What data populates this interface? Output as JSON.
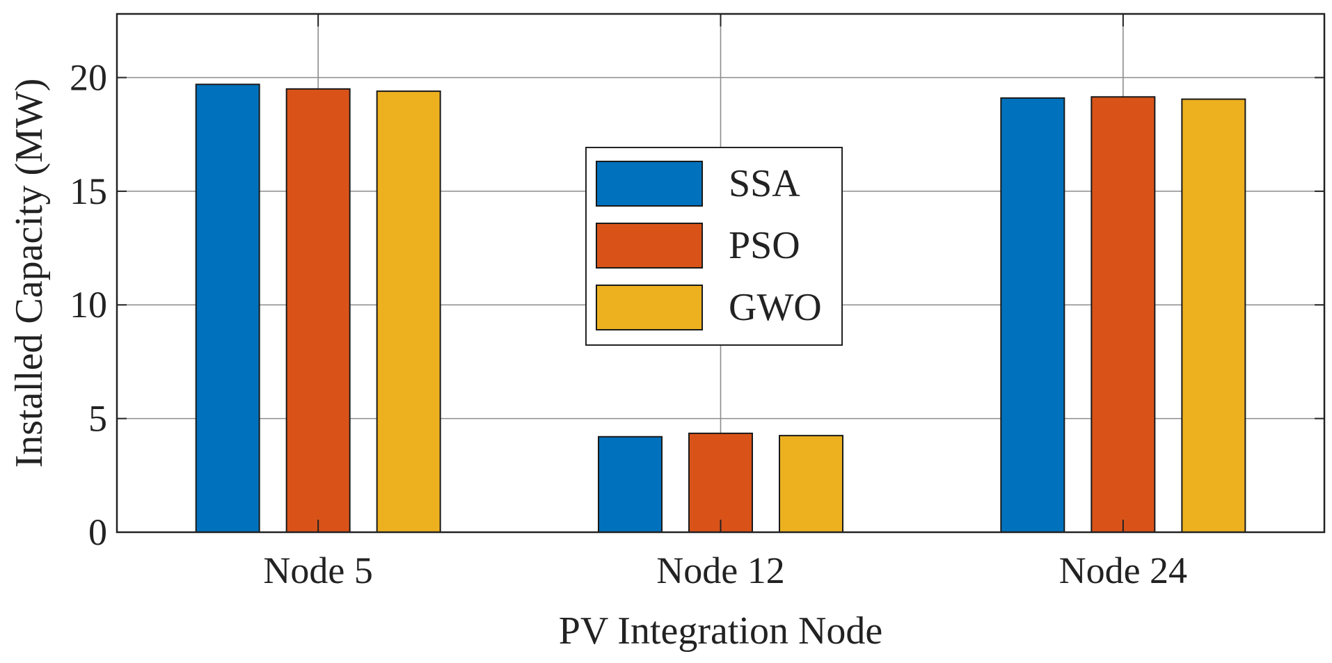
{
  "chart_data": {
    "type": "bar",
    "title": "",
    "xlabel": "PV Integration Node",
    "ylabel": "Installed Capacity (MW)",
    "categories": [
      "Node 5",
      "Node 12",
      "Node 24"
    ],
    "series": [
      {
        "name": "SSA",
        "color": "#0072BD",
        "values": [
          19.7,
          4.2,
          19.1
        ]
      },
      {
        "name": "PSO",
        "color": "#D95319",
        "values": [
          19.5,
          4.35,
          19.15
        ]
      },
      {
        "name": "GWO",
        "color": "#EDB120",
        "values": [
          19.4,
          4.25,
          19.05
        ]
      }
    ],
    "ylim": [
      0,
      22.8
    ],
    "yticks": [
      0,
      5,
      10,
      15,
      20
    ],
    "ytick_labels": [
      "0",
      "5",
      "10",
      "15",
      "20"
    ],
    "grid": true,
    "legend_position": "center"
  }
}
